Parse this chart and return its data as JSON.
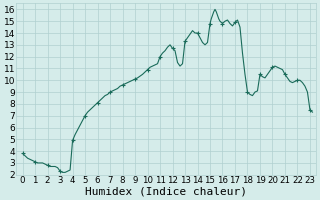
{
  "title": "",
  "xlabel": "Humidex (Indice chaleur)",
  "background_color": "#d5ecea",
  "grid_color": "#b0d0d0",
  "line_color": "#1a6b5a",
  "marker_color": "#1a6b5a",
  "xlim": [
    -0.5,
    23.5
  ],
  "ylim": [
    2,
    16.5
  ],
  "xticks": [
    0,
    1,
    2,
    3,
    4,
    5,
    6,
    7,
    8,
    9,
    10,
    11,
    12,
    13,
    14,
    15,
    16,
    17,
    18,
    19,
    20,
    21,
    22,
    23
  ],
  "yticks": [
    2,
    3,
    4,
    5,
    6,
    7,
    8,
    9,
    10,
    11,
    12,
    13,
    14,
    15,
    16
  ],
  "x": [
    0,
    0.1,
    0.2,
    0.4,
    0.6,
    0.8,
    1.0,
    1.2,
    1.4,
    1.6,
    1.8,
    2.0,
    2.2,
    2.4,
    2.6,
    2.8,
    3.0,
    3.2,
    3.4,
    3.6,
    3.8,
    4.0,
    4.2,
    4.4,
    4.6,
    4.8,
    5.0,
    5.2,
    5.4,
    5.6,
    5.8,
    6.0,
    6.2,
    6.4,
    6.6,
    6.8,
    7.0,
    7.2,
    7.4,
    7.6,
    7.8,
    8.0,
    8.2,
    8.4,
    8.6,
    8.8,
    9.0,
    9.2,
    9.4,
    9.6,
    9.8,
    10.0,
    10.2,
    10.4,
    10.6,
    10.8,
    11.0,
    11.2,
    11.4,
    11.6,
    11.8,
    12.0,
    12.2,
    12.4,
    12.6,
    12.8,
    13.0,
    13.2,
    13.4,
    13.6,
    13.8,
    14.0,
    14.2,
    14.4,
    14.6,
    14.8,
    15.0,
    15.1,
    15.2,
    15.3,
    15.4,
    15.5,
    15.6,
    15.7,
    15.8,
    16.0,
    16.2,
    16.4,
    16.6,
    16.8,
    17.0,
    17.2,
    17.4,
    17.6,
    17.8,
    18.0,
    18.2,
    18.4,
    18.6,
    18.8,
    19.0,
    19.2,
    19.4,
    19.6,
    19.8,
    20.0,
    20.2,
    20.4,
    20.6,
    20.8,
    21.0,
    21.2,
    21.4,
    21.6,
    21.8,
    22.0,
    22.2,
    22.4,
    22.6,
    22.8,
    23.0,
    23.2
  ],
  "y": [
    3.8,
    3.7,
    3.6,
    3.4,
    3.3,
    3.2,
    3.1,
    3.0,
    3.0,
    3.0,
    2.9,
    2.8,
    2.7,
    2.7,
    2.7,
    2.6,
    2.3,
    2.2,
    2.2,
    2.3,
    2.4,
    4.9,
    5.4,
    5.8,
    6.2,
    6.6,
    7.0,
    7.3,
    7.5,
    7.7,
    7.9,
    8.1,
    8.3,
    8.5,
    8.7,
    8.8,
    9.0,
    9.1,
    9.2,
    9.3,
    9.5,
    9.6,
    9.7,
    9.8,
    9.9,
    10.0,
    10.1,
    10.2,
    10.35,
    10.5,
    10.7,
    10.9,
    11.1,
    11.2,
    11.3,
    11.4,
    12.0,
    12.3,
    12.5,
    12.8,
    13.0,
    12.7,
    12.5,
    11.5,
    11.2,
    11.4,
    13.3,
    13.6,
    13.9,
    14.2,
    14.0,
    14.0,
    13.6,
    13.2,
    13.0,
    13.2,
    14.8,
    15.2,
    15.5,
    15.8,
    16.0,
    15.8,
    15.5,
    15.2,
    15.0,
    14.8,
    15.0,
    15.1,
    14.8,
    14.6,
    14.9,
    15.1,
    14.5,
    12.3,
    10.5,
    9.0,
    8.8,
    8.7,
    9.0,
    9.1,
    10.5,
    10.3,
    10.2,
    10.5,
    10.8,
    11.1,
    11.2,
    11.1,
    11.0,
    10.9,
    10.5,
    10.2,
    9.9,
    9.8,
    9.9,
    10.0,
    10.0,
    9.8,
    9.5,
    9.0,
    7.5,
    7.3
  ],
  "marker_x": [
    0,
    1,
    2,
    3,
    4,
    5,
    6,
    7,
    8,
    9,
    10,
    11,
    12,
    13,
    14,
    15,
    16,
    17,
    18,
    19,
    20,
    21,
    22,
    23
  ],
  "marker_y": [
    3.8,
    3.1,
    2.8,
    2.3,
    4.9,
    7.0,
    8.1,
    9.0,
    9.6,
    10.1,
    10.9,
    12.0,
    12.7,
    13.3,
    14.0,
    14.8,
    14.8,
    14.9,
    9.0,
    10.5,
    11.1,
    10.5,
    10.0,
    7.5
  ],
  "font_size_xlabel": 8,
  "font_size_ticks": 7
}
